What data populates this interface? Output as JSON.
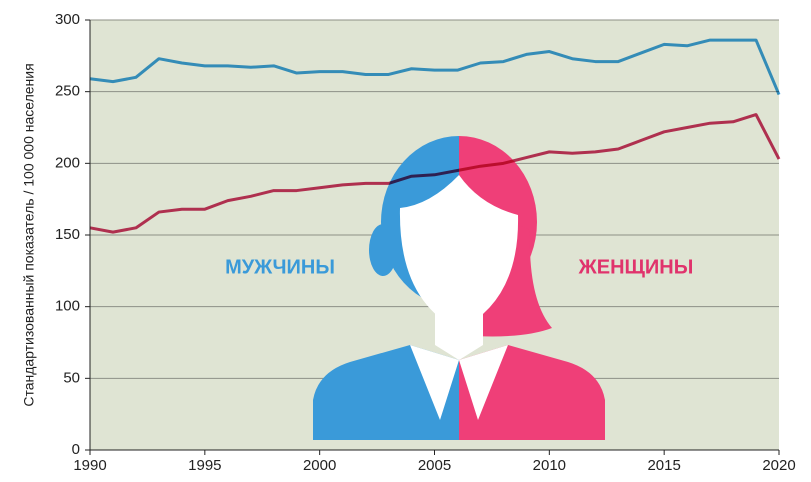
{
  "chart_data": {
    "type": "line",
    "y_label": "Стандартизованный показатель / 100 000 населения",
    "annotations": [
      "МУЖЧИНЫ",
      "ЖЕНЩИНЫ"
    ],
    "x": [
      1990,
      1991,
      1992,
      1993,
      1994,
      1995,
      1996,
      1997,
      1998,
      1999,
      2000,
      2001,
      2002,
      2003,
      2004,
      2005,
      2006,
      2007,
      2008,
      2009,
      2010,
      2011,
      2012,
      2013,
      2014,
      2015,
      2016,
      2017,
      2018,
      2019,
      2020
    ],
    "series": [
      {
        "color": "#3b9ddd",
        "values": [
          259,
          257,
          260,
          273,
          270,
          268,
          268,
          267,
          268,
          263,
          264,
          264,
          262,
          262,
          266,
          265,
          265,
          270,
          271,
          276,
          278,
          273,
          271,
          271,
          277,
          283,
          282,
          286,
          286,
          286,
          248
        ]
      },
      {
        "color": "#c8355f",
        "values": [
          155,
          152,
          155,
          166,
          168,
          168,
          174,
          177,
          181,
          181,
          183,
          185,
          186,
          186,
          191,
          192,
          195,
          198,
          200,
          204,
          208,
          207,
          208,
          210,
          216,
          222,
          225,
          228,
          229,
          234,
          203
        ]
      }
    ],
    "xlim": [
      1990,
      2020
    ],
    "ylim": [
      0,
      300
    ],
    "xticks": [
      1990,
      1995,
      2000,
      2005,
      2010,
      2015,
      2020
    ],
    "yticks": [
      0,
      50,
      100,
      150,
      200,
      250,
      300
    ],
    "grid": true
  }
}
